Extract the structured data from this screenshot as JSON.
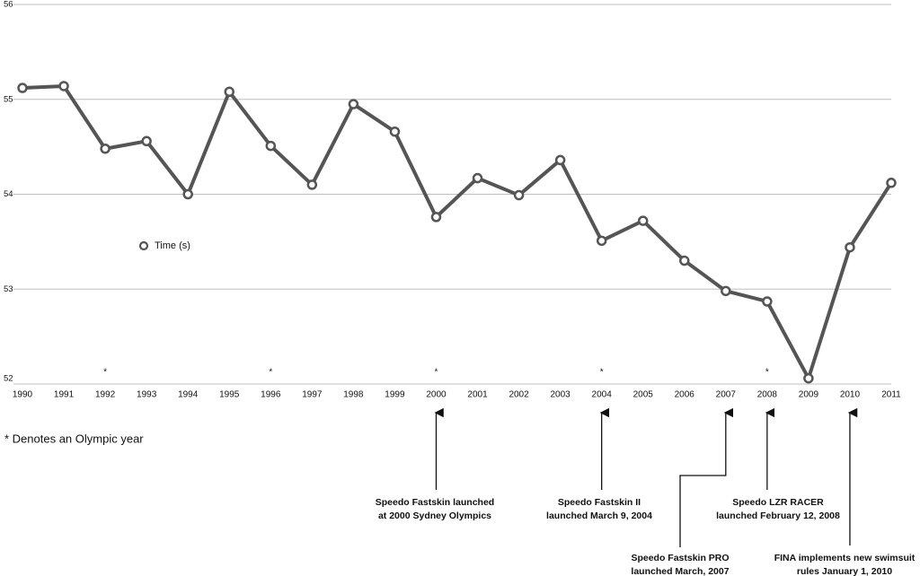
{
  "chart_data": {
    "type": "line",
    "categories": [
      "1990",
      "1991",
      "1992",
      "1993",
      "1994",
      "1995",
      "1996",
      "1997",
      "1998",
      "1999",
      "2000",
      "2001",
      "2002",
      "2003",
      "2004",
      "2005",
      "2006",
      "2007",
      "2008",
      "2009",
      "2010",
      "2011"
    ],
    "series": [
      {
        "name": "Time (s)",
        "color": "#555555",
        "values": [
          55.12,
          55.14,
          54.48,
          54.56,
          54.0,
          55.08,
          54.51,
          54.1,
          54.95,
          54.66,
          53.76,
          54.17,
          53.99,
          54.36,
          53.51,
          53.72,
          53.3,
          52.98,
          52.87,
          52.06,
          53.44,
          54.12
        ]
      }
    ],
    "ylim": [
      52,
      56
    ],
    "yticks": [
      52,
      53,
      54,
      55,
      56
    ],
    "grid": true,
    "olympic_flags": [
      null,
      null,
      "*",
      null,
      null,
      null,
      "*",
      null,
      null,
      null,
      "*",
      null,
      null,
      null,
      "*",
      null,
      null,
      null,
      "*",
      null,
      null,
      null
    ],
    "footnote": "* Denotes an Olympic year",
    "annotations": [
      {
        "target": "2000",
        "text": [
          "Speedo Fastskin launched",
          "at 2000 Sydney Olympics"
        ]
      },
      {
        "target": "2004",
        "text": [
          "Speedo Fastskin II",
          "launched March 9, 2004"
        ]
      },
      {
        "target": "2007",
        "text": [
          "Speedo Fastskin PRO",
          "launched March, 2007"
        ]
      },
      {
        "target": "2008",
        "text": [
          "Speedo LZR RACER",
          "launched February 12, 2008"
        ]
      },
      {
        "target": "2010",
        "text": [
          "FINA implements new swimsuit",
          "rules January 1, 2010"
        ]
      }
    ]
  }
}
